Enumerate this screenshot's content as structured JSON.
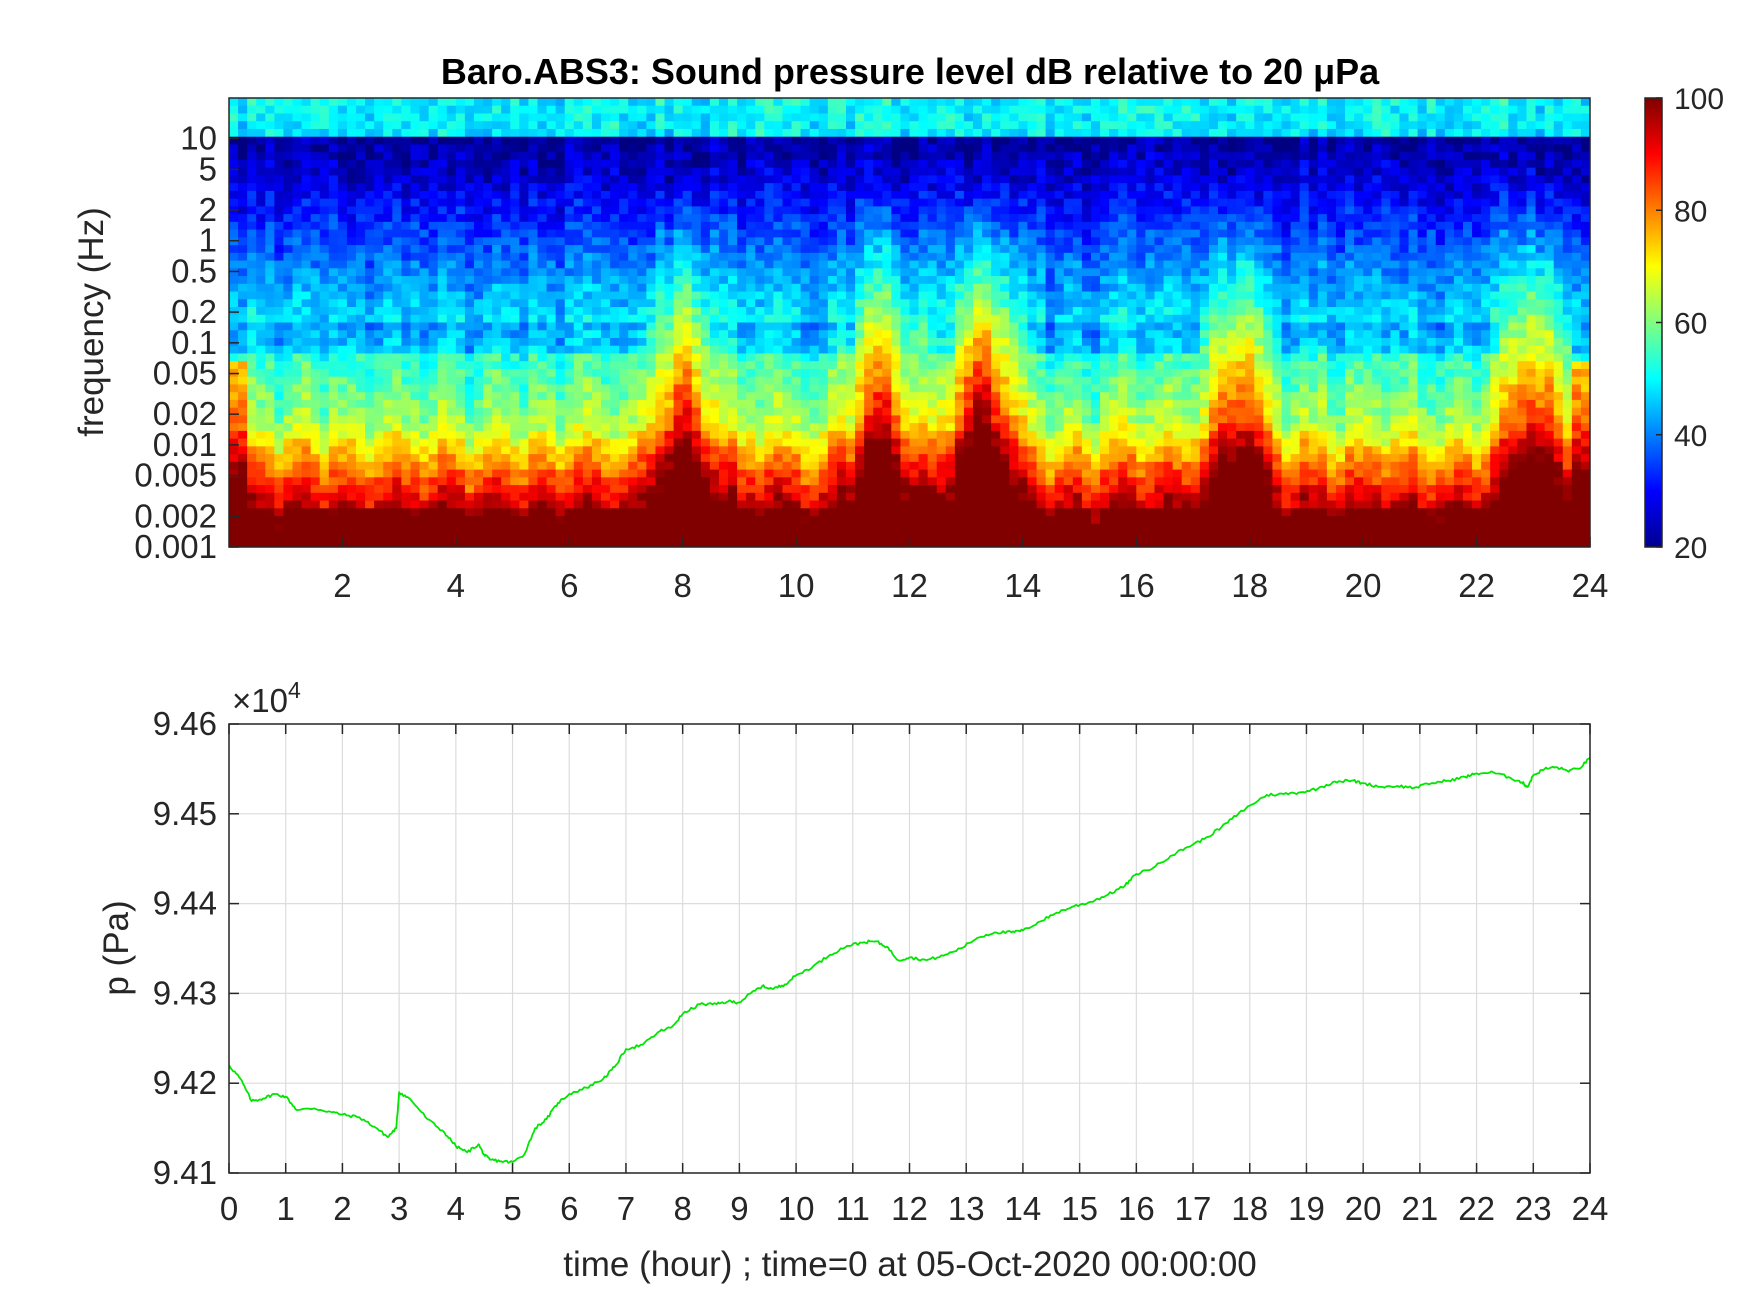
{
  "chart_data": [
    {
      "type": "heatmap",
      "title": "Baro.ABS3: Sound pressure level dB relative to 20 μPa",
      "ylabel": "frequency (Hz)",
      "xlabel": "",
      "x_range": [
        0,
        24
      ],
      "x_ticks": [
        2,
        4,
        6,
        8,
        10,
        12,
        14,
        16,
        18,
        20,
        22,
        24
      ],
      "y_scale": "log",
      "y_range": [
        0.001,
        25
      ],
      "y_ticks": [
        0.001,
        0.002,
        0.005,
        0.01,
        0.02,
        0.05,
        0.1,
        0.2,
        0.5,
        1,
        2,
        5,
        10
      ],
      "y_tick_labels": [
        "0.001",
        "0.002",
        "0.005",
        "0.01",
        "0.02",
        "0.05",
        "0.1",
        "0.2",
        "0.5",
        "1",
        "2",
        "5",
        "10"
      ],
      "colormap": "jet",
      "colorbar": {
        "min": 20,
        "max": 100,
        "ticks": [
          20,
          40,
          60,
          80,
          100
        ],
        "position": "right"
      },
      "loud_episodes_hours": [
        8,
        11.5,
        13.3,
        17.8,
        23
      ]
    },
    {
      "type": "line",
      "title": "",
      "xlabel": "time (hour) ; time=0 at 05-Oct-2020 00:00:00",
      "ylabel": "p (Pa)",
      "exponent_label": "×10",
      "exponent_power": "4",
      "x_range": [
        0,
        24
      ],
      "x_ticks": [
        0,
        1,
        2,
        3,
        4,
        5,
        6,
        7,
        8,
        9,
        10,
        11,
        12,
        13,
        14,
        15,
        16,
        17,
        18,
        19,
        20,
        21,
        22,
        23,
        24
      ],
      "y_range": [
        94100,
        94600
      ],
      "y_ticks": [
        94100,
        94200,
        94300,
        94400,
        94500,
        94600
      ],
      "y_tick_labels": [
        "9.41",
        "9.42",
        "9.43",
        "9.44",
        "9.45",
        "9.46"
      ],
      "grid": true,
      "series": [
        {
          "color": "#00e600",
          "x": [
            0,
            0.2,
            0.4,
            0.6,
            0.8,
            1.0,
            1.2,
            1.5,
            1.8,
            2.0,
            2.3,
            2.6,
            2.8,
            2.95,
            3.0,
            3.2,
            3.5,
            3.8,
            4.0,
            4.2,
            4.4,
            4.5,
            4.6,
            4.8,
            5.0,
            5.2,
            5.4,
            5.6,
            5.8,
            6.0,
            6.3,
            6.6,
            6.8,
            7.0,
            7.3,
            7.6,
            7.8,
            8.0,
            8.3,
            8.6,
            8.8,
            9.0,
            9.2,
            9.4,
            9.6,
            9.8,
            10.0,
            10.3,
            10.6,
            10.9,
            11.2,
            11.4,
            11.6,
            11.8,
            12.0,
            12.3,
            12.6,
            12.9,
            13.2,
            13.5,
            13.8,
            14.0,
            14.3,
            14.6,
            14.9,
            15.2,
            15.5,
            15.8,
            16.0,
            16.3,
            16.6,
            16.9,
            17.2,
            17.5,
            17.8,
            18.0,
            18.3,
            18.6,
            18.9,
            19.2,
            19.5,
            19.8,
            20.0,
            20.3,
            20.6,
            20.9,
            21.2,
            21.5,
            21.8,
            22.0,
            22.3,
            22.6,
            22.8,
            22.9,
            23.0,
            23.2,
            23.4,
            23.6,
            23.8,
            24.0
          ],
          "values": [
            94220,
            94205,
            94180,
            94183,
            94188,
            94185,
            94170,
            94172,
            94168,
            94165,
            94162,
            94150,
            94140,
            94150,
            94190,
            94182,
            94160,
            94145,
            94130,
            94123,
            94132,
            94120,
            94115,
            94113,
            94112,
            94120,
            94150,
            94160,
            94178,
            94188,
            94195,
            94205,
            94218,
            94238,
            94243,
            94258,
            94262,
            94277,
            94288,
            94288,
            94291,
            94290,
            94300,
            94308,
            94305,
            94310,
            94320,
            94330,
            94343,
            94353,
            94357,
            94358,
            94352,
            94337,
            94340,
            94337,
            94342,
            94350,
            94362,
            94368,
            94368,
            94370,
            94380,
            94390,
            94397,
            94402,
            94410,
            94420,
            94433,
            94440,
            94453,
            94463,
            94472,
            94485,
            94500,
            94509,
            94521,
            94522,
            94524,
            94528,
            94536,
            94537,
            94534,
            94530,
            94531,
            94529,
            94534,
            94537,
            94541,
            94545,
            94546,
            94540,
            94535,
            94530,
            94543,
            94550,
            94552,
            94548,
            94550,
            94562
          ]
        }
      ]
    }
  ]
}
